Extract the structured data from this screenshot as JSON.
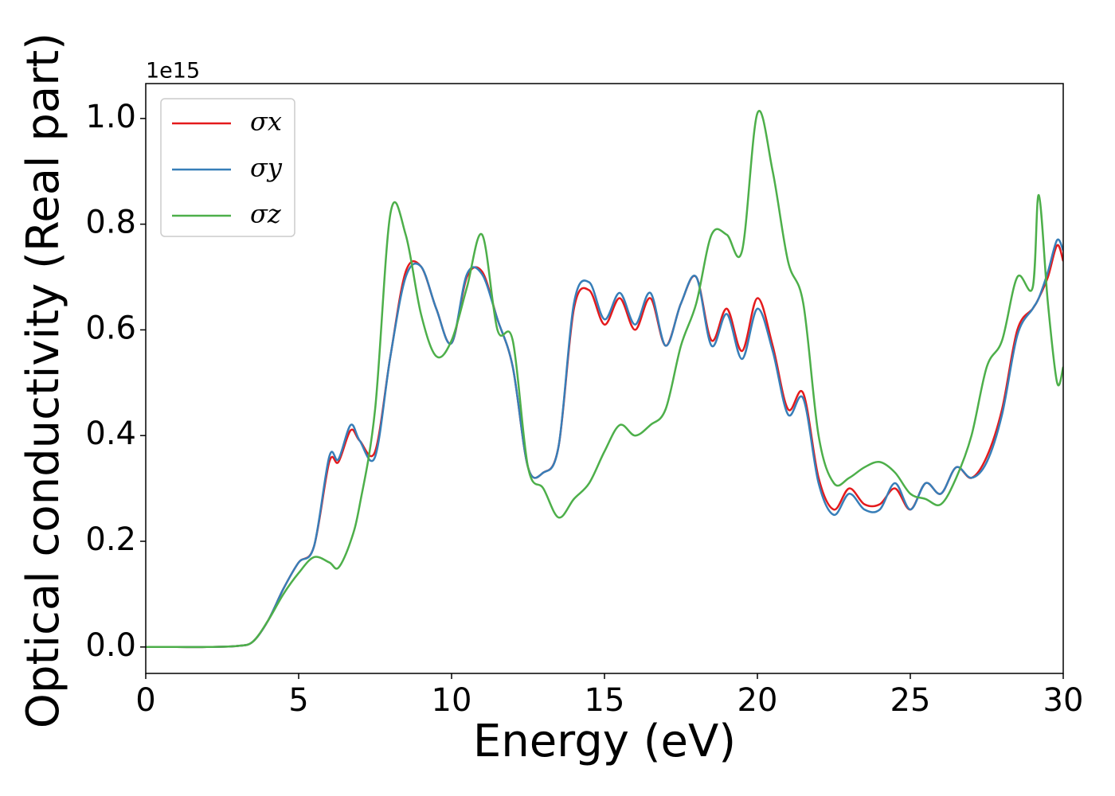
{
  "chart_data": {
    "type": "line",
    "xlabel": "Energy (eV)",
    "ylabel": "Optical conductivity (Real part)",
    "y_offset_label": "1e15",
    "x": [
      0,
      1,
      2,
      3,
      3.5,
      4,
      4.5,
      5,
      5.5,
      6,
      6.3,
      6.7,
      7,
      7.5,
      8,
      8.5,
      9,
      9.5,
      10,
      10.5,
      11,
      11.5,
      12,
      12.5,
      13,
      13.5,
      14,
      14.5,
      15,
      15.5,
      16,
      16.5,
      17,
      17.5,
      18,
      18.5,
      19,
      19.5,
      20,
      20.5,
      21,
      21.5,
      22,
      22.5,
      23,
      23.5,
      24,
      24.5,
      25,
      25.5,
      26,
      26.5,
      27,
      27.5,
      28,
      28.5,
      29,
      29.2,
      29.5,
      29.8,
      30
    ],
    "series": [
      {
        "name": "σx",
        "color": "#e41a1c",
        "values": [
          0,
          0,
          0,
          0.002,
          0.01,
          0.05,
          0.11,
          0.16,
          0.19,
          0.35,
          0.35,
          0.41,
          0.39,
          0.37,
          0.55,
          0.71,
          0.72,
          0.64,
          0.575,
          0.7,
          0.71,
          0.62,
          0.53,
          0.34,
          0.33,
          0.38,
          0.64,
          0.675,
          0.61,
          0.66,
          0.6,
          0.66,
          0.57,
          0.65,
          0.7,
          0.58,
          0.64,
          0.56,
          0.66,
          0.57,
          0.45,
          0.48,
          0.32,
          0.26,
          0.3,
          0.27,
          0.27,
          0.3,
          0.26,
          0.31,
          0.29,
          0.34,
          0.32,
          0.36,
          0.45,
          0.6,
          0.64,
          0.66,
          0.7,
          0.76,
          0.73
        ]
      },
      {
        "name": "σy",
        "color": "#377eb8",
        "values": [
          0,
          0,
          0,
          0.002,
          0.01,
          0.05,
          0.11,
          0.16,
          0.19,
          0.36,
          0.355,
          0.42,
          0.39,
          0.36,
          0.55,
          0.7,
          0.72,
          0.64,
          0.575,
          0.705,
          0.705,
          0.62,
          0.53,
          0.34,
          0.33,
          0.38,
          0.65,
          0.69,
          0.62,
          0.67,
          0.61,
          0.67,
          0.57,
          0.65,
          0.7,
          0.57,
          0.63,
          0.545,
          0.64,
          0.56,
          0.44,
          0.47,
          0.31,
          0.25,
          0.29,
          0.26,
          0.26,
          0.31,
          0.26,
          0.31,
          0.29,
          0.34,
          0.32,
          0.35,
          0.44,
          0.59,
          0.64,
          0.66,
          0.71,
          0.77,
          0.75
        ]
      },
      {
        "name": "σz",
        "color": "#4daf4a",
        "values": [
          0,
          0,
          0,
          0.002,
          0.01,
          0.05,
          0.1,
          0.14,
          0.17,
          0.16,
          0.15,
          0.2,
          0.27,
          0.45,
          0.82,
          0.78,
          0.63,
          0.55,
          0.58,
          0.68,
          0.78,
          0.6,
          0.58,
          0.34,
          0.3,
          0.245,
          0.28,
          0.31,
          0.37,
          0.42,
          0.4,
          0.42,
          0.45,
          0.57,
          0.65,
          0.78,
          0.78,
          0.75,
          1.01,
          0.9,
          0.73,
          0.65,
          0.4,
          0.31,
          0.32,
          0.34,
          0.35,
          0.33,
          0.29,
          0.28,
          0.27,
          0.32,
          0.4,
          0.53,
          0.58,
          0.7,
          0.68,
          0.855,
          0.65,
          0.5,
          0.53
        ]
      }
    ],
    "xlim": [
      0,
      30
    ],
    "ylim": [
      -0.05,
      1.066
    ],
    "xticks": [
      0,
      5,
      10,
      15,
      20,
      25,
      30
    ],
    "yticks": [
      {
        "value": 0,
        "label": "0.0"
      },
      0.2,
      0.4,
      0.6,
      0.8,
      {
        "value": 1,
        "label": "1.0"
      }
    ],
    "legend": "upper left",
    "grid": false
  }
}
